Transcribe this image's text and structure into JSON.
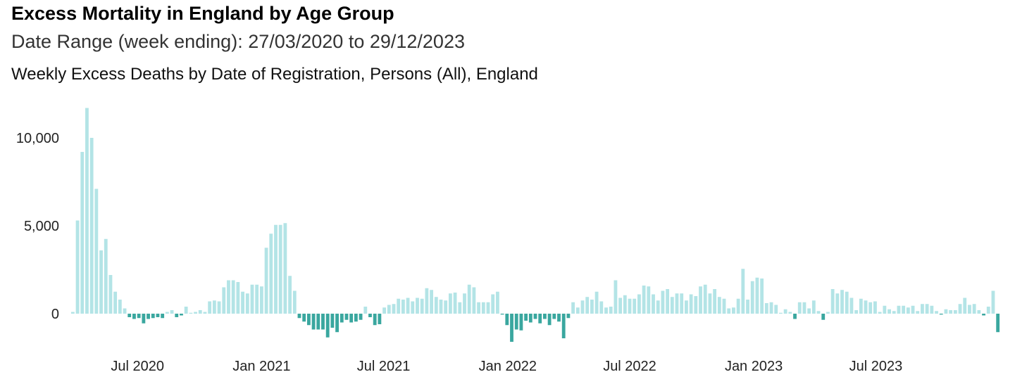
{
  "header": {
    "title": "Excess Mortality in England by Age Group",
    "subtitle": "Date Range (week ending): 27/03/2020 to 29/12/2023",
    "caption": "Weekly Excess Deaths by Date of Registration, Persons (All), England"
  },
  "colors": {
    "positive": "#b3e4e6",
    "negative": "#3aa79f"
  },
  "chart_data": {
    "type": "bar",
    "title": "Weekly Excess Deaths by Date of Registration, Persons (All), England",
    "xlabel": "",
    "ylabel": "",
    "ylim": [
      -1700,
      12000
    ],
    "yticks": [
      0,
      5000,
      10000
    ],
    "ytick_labels": [
      "0",
      "5,000",
      "10,000"
    ],
    "xticks": [
      {
        "label": "Jul 2020",
        "date": "2020-07-01"
      },
      {
        "label": "Jan 2021",
        "date": "2021-01-01"
      },
      {
        "label": "Jul 2021",
        "date": "2021-07-01"
      },
      {
        "label": "Jan 2022",
        "date": "2022-01-01"
      },
      {
        "label": "Jul 2022",
        "date": "2022-07-01"
      },
      {
        "label": "Jan 2023",
        "date": "2023-01-01"
      },
      {
        "label": "Jul 2023",
        "date": "2023-07-01"
      }
    ],
    "x_start": "2020-03-27",
    "x_end": "2023-12-29",
    "week_interval_days": 7,
    "grid": false,
    "legend": "none",
    "values": [
      100,
      5300,
      9200,
      11700,
      10000,
      7100,
      3600,
      4250,
      2200,
      1250,
      800,
      300,
      -200,
      -300,
      -250,
      -550,
      -300,
      -250,
      -200,
      -250,
      100,
      200,
      -200,
      -100,
      400,
      50,
      100,
      200,
      100,
      700,
      750,
      700,
      1500,
      1900,
      1900,
      1800,
      1250,
      1150,
      1650,
      1650,
      1550,
      3750,
      4550,
      5050,
      5050,
      5150,
      2150,
      1300,
      -250,
      -450,
      -650,
      -900,
      -900,
      -900,
      -1350,
      -800,
      -1050,
      -500,
      -350,
      -500,
      -450,
      -350,
      400,
      -200,
      -650,
      -600,
      350,
      500,
      550,
      850,
      800,
      900,
      700,
      900,
      850,
      1450,
      1350,
      950,
      800,
      750,
      1150,
      1200,
      650,
      1150,
      1650,
      1500,
      650,
      650,
      650,
      1100,
      1250,
      -50,
      -650,
      -1600,
      -900,
      -950,
      -400,
      -500,
      -300,
      -550,
      -300,
      -650,
      -300,
      -450,
      -1400,
      -250,
      650,
      350,
      750,
      950,
      800,
      1250,
      700,
      350,
      400,
      1900,
      900,
      1050,
      850,
      850,
      1100,
      1600,
      1550,
      1100,
      750,
      1300,
      1400,
      950,
      1150,
      1150,
      750,
      1100,
      1000,
      1550,
      1650,
      1150,
      1400,
      950,
      850,
      300,
      350,
      850,
      2550,
      800,
      1850,
      2050,
      2000,
      600,
      650,
      500,
      50,
      250,
      100,
      -300,
      650,
      650,
      300,
      750,
      150,
      -350,
      100,
      1400,
      1150,
      1350,
      1250,
      900,
      200,
      850,
      750,
      650,
      700,
      100,
      450,
      250,
      150,
      450,
      450,
      350,
      450,
      150,
      550,
      550,
      450,
      150,
      -50,
      250,
      200,
      200,
      550,
      900,
      500,
      550,
      200,
      -100,
      400,
      1300,
      -1050
    ]
  }
}
